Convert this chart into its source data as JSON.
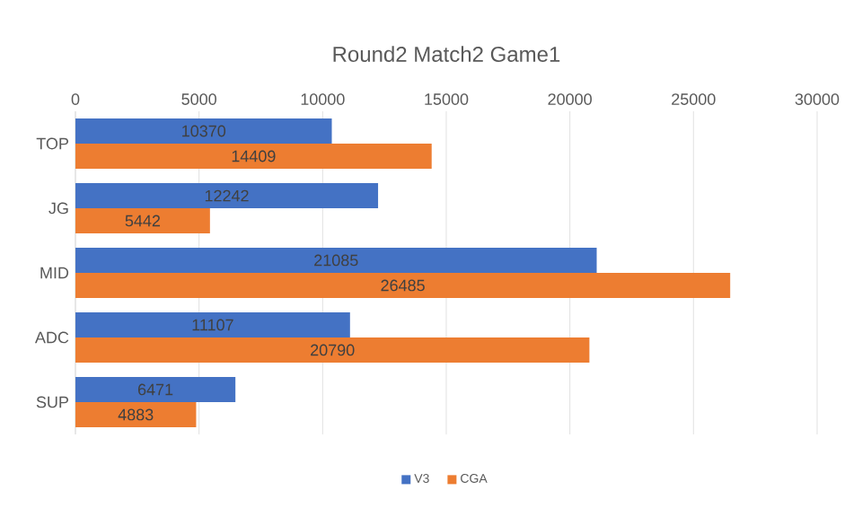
{
  "chart_data": {
    "type": "bar",
    "orientation": "horizontal",
    "title": "Round2 Match2 Game1",
    "categories": [
      "TOP",
      "JG",
      "MID",
      "ADC",
      "SUP"
    ],
    "series": [
      {
        "name": "V3",
        "color": "#4472c4",
        "values": [
          10370,
          12242,
          21085,
          11107,
          6471
        ]
      },
      {
        "name": "CGA",
        "color": "#ed7d31",
        "values": [
          14409,
          5442,
          26485,
          20790,
          4883
        ]
      }
    ],
    "xlim": [
      0,
      30000
    ],
    "xticks": [
      0,
      5000,
      10000,
      15000,
      20000,
      25000,
      30000
    ],
    "grid": "x",
    "legend": "bottom",
    "data_labels": true
  }
}
